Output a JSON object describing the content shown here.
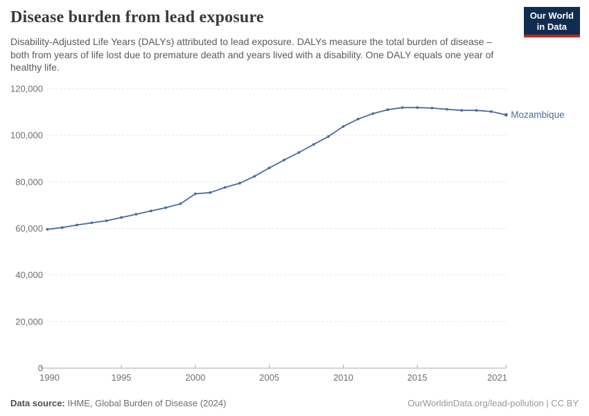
{
  "header": {
    "title": "Disease burden from lead exposure",
    "subtitle": "Disability-Adjusted Life Years (DALYs) attributed to lead exposure. DALYs measure the total burden of disease – both from years of life lost due to premature death and years lived with a disability. One DALY equals one year of healthy life.",
    "logo_line1": "Our World",
    "logo_line2": "in Data"
  },
  "chart_data": {
    "type": "line",
    "title": "Disease burden from lead exposure",
    "x": [
      1990,
      1991,
      1992,
      1993,
      1994,
      1995,
      1996,
      1997,
      1998,
      1999,
      2000,
      2001,
      2002,
      2003,
      2004,
      2005,
      2006,
      2007,
      2008,
      2009,
      2010,
      2011,
      2012,
      2013,
      2014,
      2015,
      2016,
      2017,
      2018,
      2019,
      2020,
      2021
    ],
    "series": [
      {
        "name": "Mozambique",
        "color": "#4c6a9c",
        "values": [
          59600,
          60400,
          61500,
          62400,
          63300,
          64700,
          66100,
          67500,
          68900,
          70600,
          74900,
          75400,
          77600,
          79400,
          82400,
          86000,
          89400,
          92600,
          96100,
          99500,
          103800,
          107000,
          109300,
          111000,
          111900,
          111900,
          111700,
          111200,
          110700,
          110700,
          110200,
          108800
        ]
      }
    ],
    "xlabel": "",
    "ylabel": "",
    "ylim": [
      0,
      120000
    ],
    "yticks": [
      0,
      20000,
      40000,
      60000,
      80000,
      100000,
      120000
    ],
    "xticks": [
      1990,
      1995,
      2000,
      2005,
      2010,
      2015,
      2021
    ],
    "grid": "horizontal-dashed",
    "legend": "end-of-line-label"
  },
  "footer": {
    "source_label": "Data source:",
    "source_value": " IHME, Global Burden of Disease (2024)",
    "link": "OurWorldinData.org/lead-pollution | CC BY"
  },
  "colors": {
    "line": "#4c6a9c",
    "grid": "#e3e3e3",
    "axis": "#a8a8a8",
    "tick_label": "#6e6e6e",
    "logo_bg": "#102d50",
    "logo_red": "#c0262d"
  }
}
